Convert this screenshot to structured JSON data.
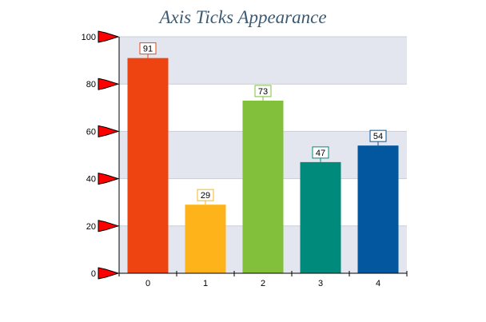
{
  "chart_data": {
    "type": "bar",
    "title": "Axis Ticks Appearance",
    "xlabel": "",
    "ylabel": "",
    "categories": [
      "0",
      "1",
      "2",
      "3",
      "4"
    ],
    "values": [
      91,
      29,
      73,
      47,
      54
    ],
    "colors": [
      "#ee4411",
      "#ffb31a",
      "#82bf3a",
      "#008a7b",
      "#02579e"
    ],
    "ylim": [
      0,
      100
    ],
    "yticks": [
      "0",
      "20",
      "40",
      "60",
      "80",
      "100"
    ],
    "y_tick_values": [
      0,
      20,
      40,
      60,
      80,
      100
    ],
    "y_tick_marker": "red-flag-arrow",
    "y_tick_marker_color": "#ff0000",
    "grid": true,
    "band_colors": [
      "#e3e6ee",
      "#ffffff"
    ],
    "legend": "none"
  }
}
